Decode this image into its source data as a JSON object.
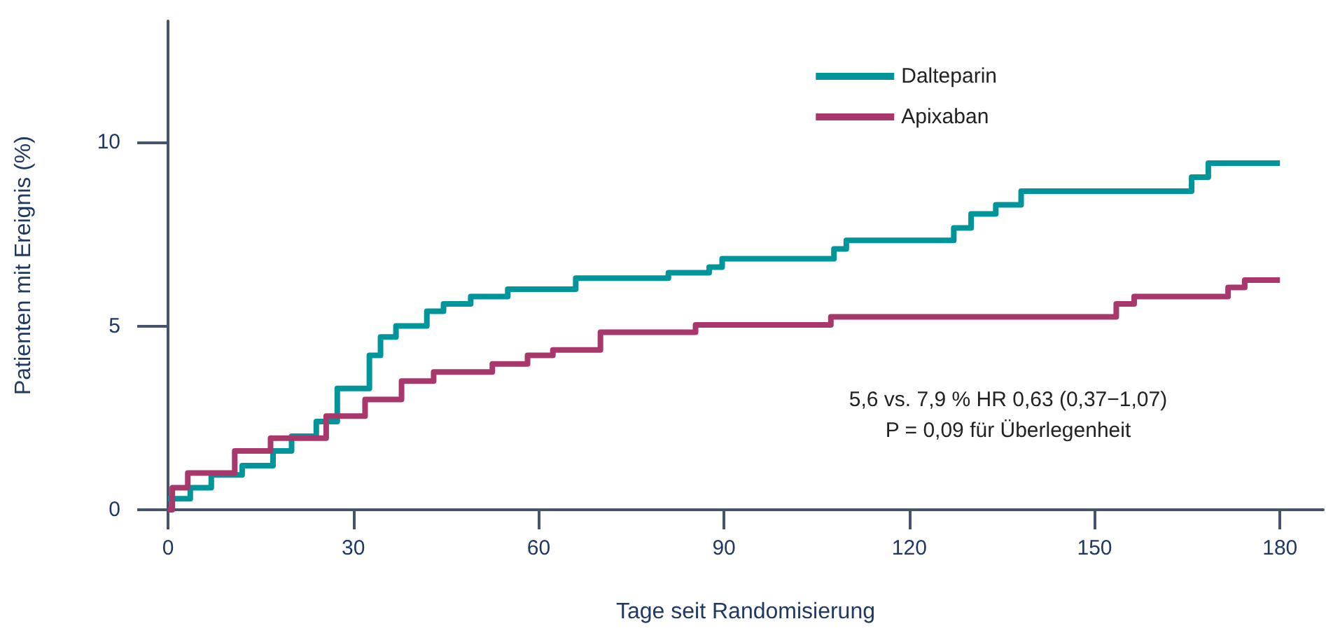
{
  "chart_data": {
    "type": "step",
    "xlabel": "Tage seit Randomisierung",
    "ylabel": "Patienten mit Ereignis (%)",
    "xlim": [
      0,
      187
    ],
    "xticks": [
      0,
      30,
      60,
      90,
      120,
      150,
      180
    ],
    "ylim": [
      0,
      13.3
    ],
    "yticks": [
      0,
      5,
      10
    ],
    "grid": false,
    "legend": "top right",
    "line_style": "solid",
    "annotations": [
      "5,6 vs. 7,9 % HR 0,63 (0,37−1,07)",
      "P = 0,09 für Überlegenheit"
    ],
    "series": [
      {
        "name": "Dalteparin",
        "color": "#00959a",
        "x": [
          0,
          3.6,
          7,
          12,
          17,
          20,
          24,
          27.4,
          32.6,
          34.4,
          36.9,
          41.9,
          44.6,
          49,
          55,
          66,
          81,
          87.6,
          89.7,
          107.8,
          109.8,
          127.2,
          130,
          134,
          138.1,
          165.7,
          168.4,
          180
        ],
        "values": [
          0.3,
          0.6,
          0.95,
          1.2,
          1.6,
          2.0,
          2.4,
          3.3,
          4.2,
          4.7,
          5.0,
          5.4,
          5.6,
          5.8,
          6.0,
          6.3,
          6.45,
          6.6,
          6.83,
          7.1,
          7.33,
          7.67,
          8.05,
          8.3,
          8.67,
          9.05,
          9.43,
          9.43
        ]
      },
      {
        "name": "Apixaban",
        "color": "#a8386b",
        "x": [
          0,
          0.7,
          3.2,
          10.8,
          16.6,
          25.6,
          31.9,
          37.8,
          43,
          52.5,
          58.2,
          62.3,
          70,
          85.4,
          107.3,
          153.5,
          156.4,
          171.6,
          174.3,
          180
        ],
        "values": [
          0,
          0.6,
          1.0,
          1.6,
          1.95,
          2.55,
          3.0,
          3.5,
          3.75,
          3.97,
          4.2,
          4.35,
          4.83,
          5.03,
          5.25,
          5.6,
          5.8,
          6.05,
          6.25,
          6.25
        ]
      }
    ]
  }
}
